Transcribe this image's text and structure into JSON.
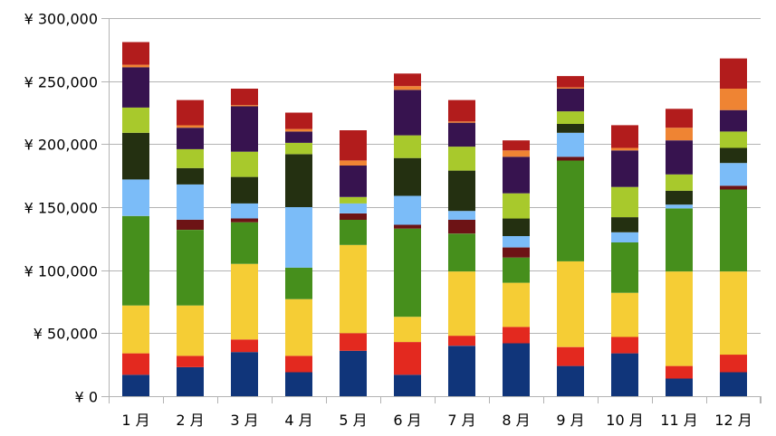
{
  "chart_data": {
    "type": "bar",
    "stacked": true,
    "title": "",
    "xlabel": "",
    "ylabel": "",
    "categories": [
      "1 月",
      "2 月",
      "3 月",
      "4 月",
      "5 月",
      "6 月",
      "7 月",
      "8 月",
      "9 月",
      "10 月",
      "11 月",
      "12 月"
    ],
    "y_tick_labels": [
      "¥ 0",
      "¥ 50,000",
      "¥ 100,000",
      "¥ 150,000",
      "¥ 200,000",
      "¥ 250,000",
      "¥ 300,000"
    ],
    "y_ticks": [
      0,
      50000,
      100000,
      150000,
      200000,
      250000,
      300000
    ],
    "ylim": [
      0,
      300000
    ],
    "grid": true,
    "legend": "none",
    "series": [
      {
        "color": "#10357a",
        "values": [
          17000,
          23000,
          35000,
          19000,
          36000,
          17000,
          40000,
          42000,
          24000,
          34000,
          14000,
          19000
        ]
      },
      {
        "color": "#e3291f",
        "values": [
          17000,
          9000,
          10000,
          13000,
          14000,
          26000,
          8000,
          13000,
          15000,
          13000,
          10000,
          14000
        ]
      },
      {
        "color": "#f5cd35",
        "values": [
          38000,
          40000,
          60000,
          45000,
          70000,
          20000,
          51000,
          35000,
          68000,
          35000,
          75000,
          66000
        ]
      },
      {
        "color": "#468f1c",
        "values": [
          71000,
          60000,
          33000,
          25000,
          20000,
          70000,
          30000,
          20000,
          80000,
          40000,
          50000,
          65000
        ]
      },
      {
        "color": "#6d1315",
        "values": [
          0,
          8000,
          3000,
          0,
          5000,
          3000,
          11000,
          8000,
          3000,
          0,
          0,
          3000
        ]
      },
      {
        "color": "#7bbcf8",
        "values": [
          29000,
          28000,
          12000,
          48000,
          8000,
          23000,
          7000,
          9000,
          19000,
          8000,
          3000,
          18000
        ]
      },
      {
        "color": "#243011",
        "values": [
          37000,
          13000,
          21000,
          42000,
          0,
          30000,
          32000,
          14000,
          7000,
          12000,
          11000,
          12000
        ]
      },
      {
        "color": "#a8c92c",
        "values": [
          20000,
          15000,
          20000,
          9000,
          5000,
          18000,
          19000,
          20000,
          10000,
          24000,
          13000,
          13000
        ]
      },
      {
        "color": "#37134f",
        "values": [
          32000,
          17000,
          36000,
          9000,
          25000,
          36000,
          19000,
          29000,
          18000,
          29000,
          27000,
          17000
        ]
      },
      {
        "color": "#ef8433",
        "values": [
          2000,
          2000,
          1000,
          2000,
          4000,
          3000,
          1000,
          5000,
          1000,
          2000,
          10000,
          17000
        ]
      },
      {
        "color": "#b21c1c",
        "values": [
          18000,
          20000,
          13000,
          13000,
          24000,
          10000,
          17000,
          8000,
          9000,
          18000,
          15000,
          24000
        ]
      }
    ]
  }
}
